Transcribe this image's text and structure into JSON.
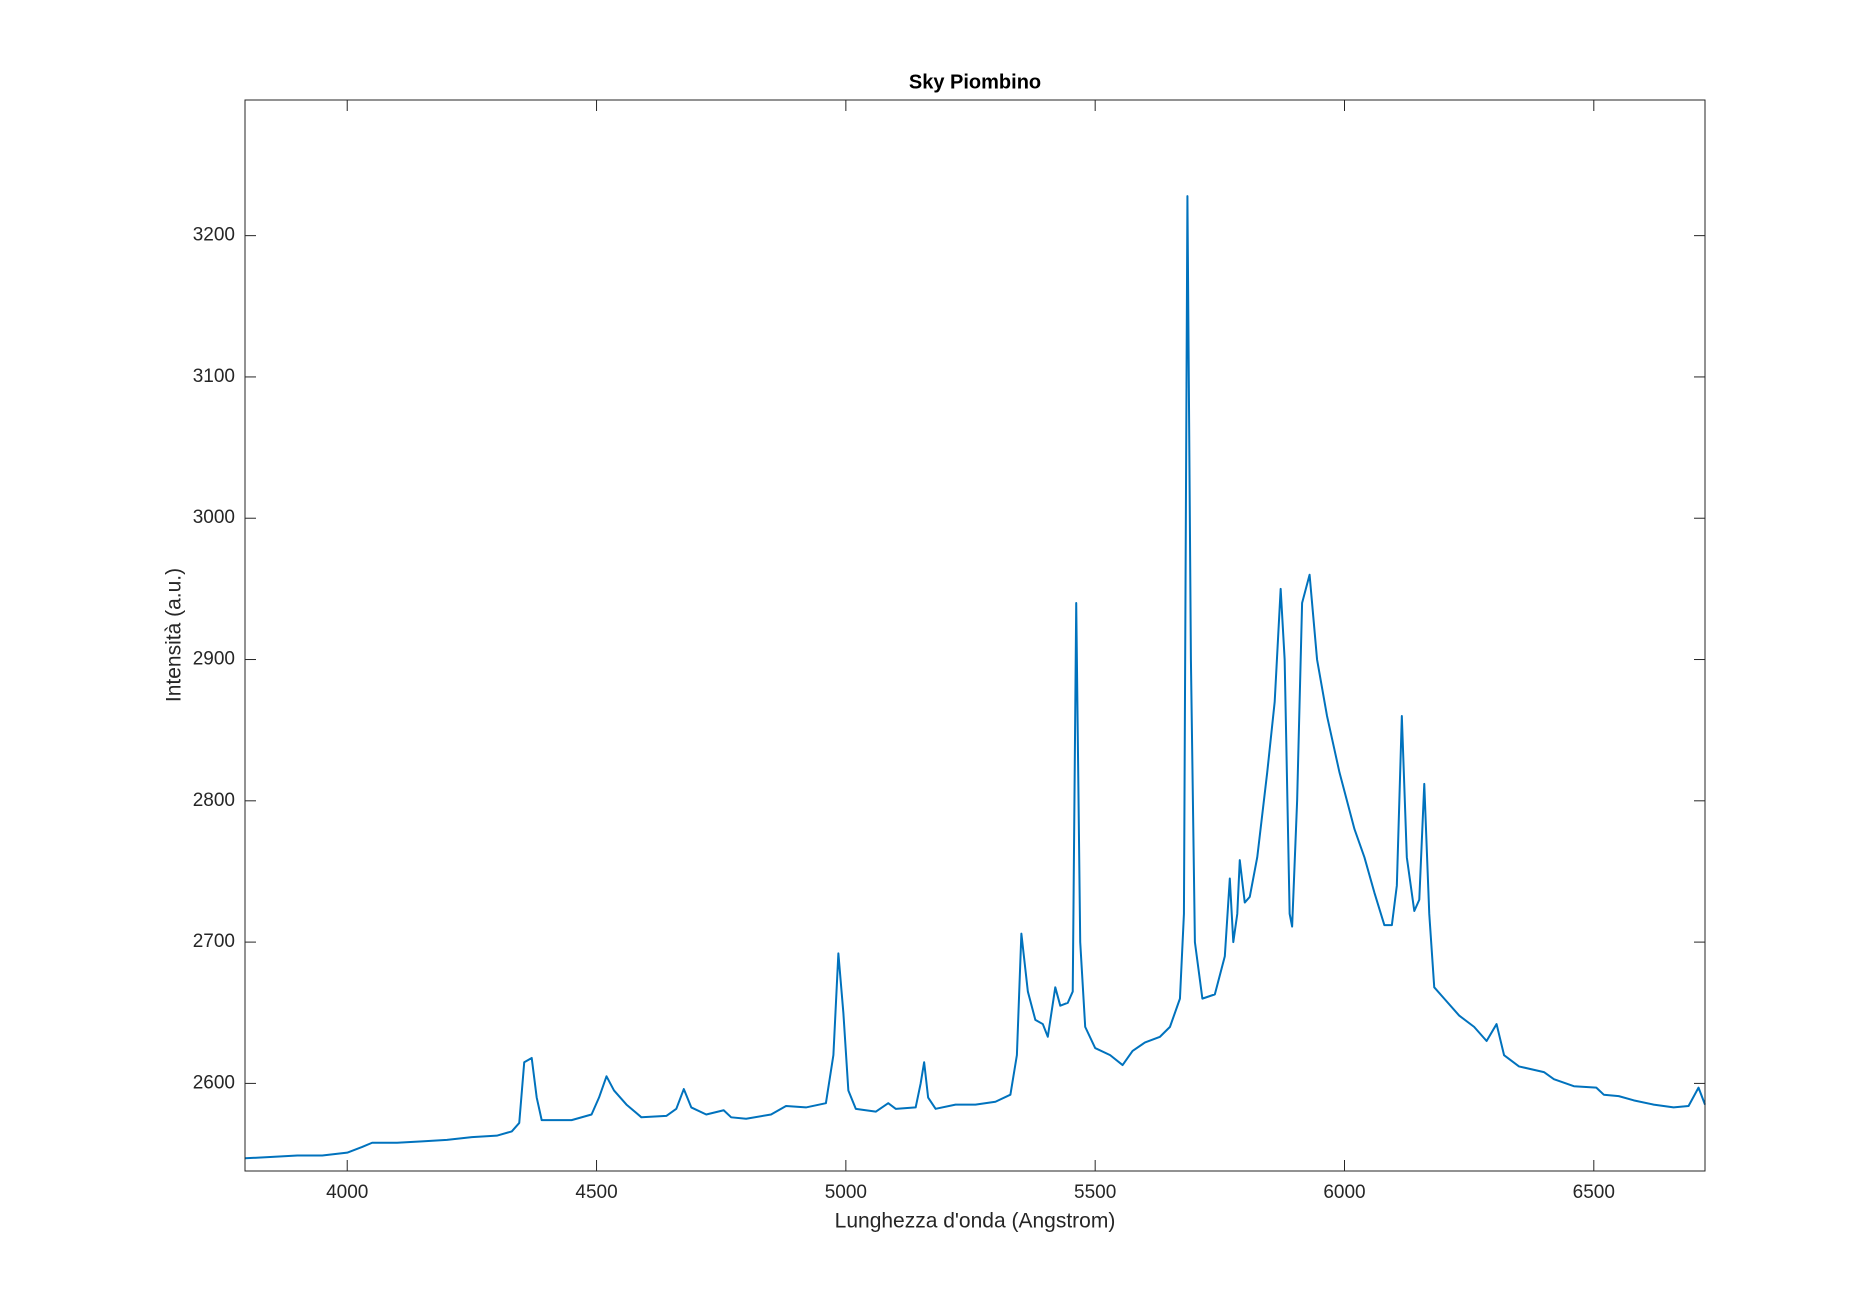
{
  "chart_data": {
    "type": "line",
    "title": "Sky Piombino",
    "x_label": "Lunghezza d'onda (Angstrom)",
    "y_label": "Intensità (a.u.)",
    "xlim": [
      3795,
      6723
    ],
    "ylim": [
      2538,
      3296
    ],
    "xticks": [
      4000,
      4500,
      5000,
      5500,
      6000,
      6500
    ],
    "yticks": [
      2600,
      2700,
      2800,
      2900,
      3000,
      3100,
      3200
    ],
    "grid": false,
    "series": [
      {
        "color": "#0072bd",
        "x": [
          3795,
          3850,
          3900,
          3950,
          4000,
          4030,
          4050,
          4100,
          4150,
          4200,
          4250,
          4300,
          4330,
          4345,
          4355,
          4370,
          4380,
          4390,
          4450,
          4490,
          4505,
          4520,
          4535,
          4560,
          4590,
          4640,
          4660,
          4675,
          4690,
          4720,
          4755,
          4770,
          4800,
          4850,
          4880,
          4920,
          4960,
          4975,
          4985,
          4995,
          5005,
          5020,
          5060,
          5085,
          5100,
          5140,
          5150,
          5157,
          5165,
          5180,
          5220,
          5260,
          5300,
          5330,
          5343,
          5352,
          5365,
          5380,
          5395,
          5405,
          5420,
          5430,
          5445,
          5455,
          5462,
          5470,
          5480,
          5500,
          5530,
          5555,
          5575,
          5600,
          5630,
          5650,
          5670,
          5678,
          5685,
          5692,
          5700,
          5715,
          5740,
          5760,
          5770,
          5777,
          5785,
          5790,
          5800,
          5810,
          5825,
          5845,
          5860,
          5872,
          5880,
          5890,
          5895,
          5905,
          5915,
          5930,
          5945,
          5965,
          5990,
          6020,
          6040,
          6060,
          6080,
          6095,
          6105,
          6115,
          6125,
          6140,
          6150,
          6160,
          6170,
          6180,
          6200,
          6230,
          6260,
          6285,
          6305,
          6320,
          6350,
          6400,
          6420,
          6460,
          6505,
          6520,
          6550,
          6580,
          6620,
          6660,
          6690,
          6710,
          6723
        ],
        "values": [
          2547,
          2548,
          2549,
          2549,
          2551,
          2555,
          2558,
          2558,
          2559,
          2560,
          2562,
          2563,
          2566,
          2572,
          2615,
          2618,
          2590,
          2574,
          2574,
          2578,
          2590,
          2605,
          2595,
          2585,
          2576,
          2577,
          2582,
          2596,
          2583,
          2578,
          2581,
          2576,
          2575,
          2578,
          2584,
          2583,
          2586,
          2620,
          2692,
          2650,
          2595,
          2582,
          2580,
          2586,
          2582,
          2583,
          2600,
          2615,
          2590,
          2582,
          2585,
          2585,
          2587,
          2592,
          2620,
          2706,
          2665,
          2645,
          2642,
          2633,
          2668,
          2655,
          2657,
          2665,
          2940,
          2700,
          2640,
          2625,
          2620,
          2613,
          2623,
          2629,
          2633,
          2640,
          2660,
          2720,
          3228,
          2900,
          2700,
          2660,
          2663,
          2690,
          2745,
          2700,
          2720,
          2758,
          2728,
          2732,
          2760,
          2820,
          2870,
          2950,
          2900,
          2720,
          2711,
          2800,
          2940,
          2960,
          2900,
          2860,
          2820,
          2780,
          2760,
          2735,
          2712,
          2712,
          2740,
          2860,
          2760,
          2722,
          2730,
          2812,
          2720,
          2668,
          2660,
          2648,
          2640,
          2630,
          2642,
          2620,
          2612,
          2608,
          2603,
          2598,
          2597,
          2592,
          2591,
          2588,
          2585,
          2583,
          2584,
          2597,
          2585
        ]
      }
    ]
  }
}
